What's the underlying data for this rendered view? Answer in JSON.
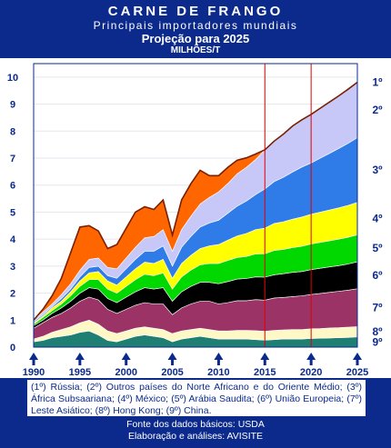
{
  "header": {
    "title": "CARNE DE FRANGO",
    "subtitle": "Principais importadores mundiais",
    "projection": "Projeção para 2025",
    "units": "MILHÕES/T"
  },
  "legend_text": "(1º) Rússia; (2º) Outros países do Norte Africano e do Oriente Médio; (3º) África Subsaariana; (4º) México; (5º) Arábia Saudita; (6º) União Europeia; (7º) Leste Asiático; (8º) Hong Kong; (9º) China.",
  "footer": {
    "source": "Fonte dos dados básicos: USDA",
    "credits": "Elaboração e análises: AVISITE"
  },
  "chart_data": {
    "type": "area",
    "stacked": true,
    "x": [
      1990,
      1991,
      1992,
      1993,
      1994,
      1995,
      1996,
      1997,
      1998,
      1999,
      2000,
      2001,
      2002,
      2003,
      2004,
      2005,
      2006,
      2007,
      2008,
      2009,
      2010,
      2011,
      2012,
      2013,
      2014,
      2015,
      2016,
      2017,
      2018,
      2019,
      2020,
      2021,
      2022,
      2023,
      2024,
      2025
    ],
    "xlim": [
      1990,
      2025
    ],
    "ylim": [
      0,
      10.5
    ],
    "x_ticks": [
      1990,
      1995,
      2000,
      2005,
      2010,
      2015,
      2020,
      2025
    ],
    "y_ticks": [
      0,
      1,
      2,
      3,
      4,
      5,
      6,
      7,
      8,
      9,
      10
    ],
    "vertical_markers": [
      2015,
      2020
    ],
    "series": [
      {
        "name": "9º",
        "color": "#1f7f73",
        "values": [
          0.2,
          0.25,
          0.35,
          0.4,
          0.45,
          0.55,
          0.6,
          0.45,
          0.25,
          0.2,
          0.3,
          0.4,
          0.45,
          0.4,
          0.35,
          0.2,
          0.3,
          0.35,
          0.4,
          0.35,
          0.3,
          0.3,
          0.3,
          0.3,
          0.28,
          0.26,
          0.28,
          0.3,
          0.3,
          0.3,
          0.32,
          0.33,
          0.34,
          0.35,
          0.36,
          0.38
        ]
      },
      {
        "name": "8º",
        "color": "#fdf8c6",
        "values": [
          0.1,
          0.15,
          0.2,
          0.25,
          0.3,
          0.35,
          0.4,
          0.4,
          0.35,
          0.3,
          0.3,
          0.3,
          0.3,
          0.3,
          0.3,
          0.3,
          0.3,
          0.3,
          0.3,
          0.3,
          0.3,
          0.3,
          0.32,
          0.32,
          0.33,
          0.33,
          0.34,
          0.34,
          0.35,
          0.35,
          0.36,
          0.36,
          0.37,
          0.37,
          0.38,
          0.38
        ]
      },
      {
        "name": "7º",
        "color": "#9c3366",
        "values": [
          0.4,
          0.5,
          0.55,
          0.6,
          0.7,
          0.8,
          0.85,
          0.9,
          0.8,
          0.75,
          0.8,
          0.85,
          0.9,
          0.9,
          0.95,
          0.7,
          0.85,
          0.95,
          1.0,
          1.05,
          1.0,
          1.05,
          1.1,
          1.1,
          1.15,
          1.15,
          1.2,
          1.2,
          1.22,
          1.25,
          1.27,
          1.3,
          1.32,
          1.35,
          1.37,
          1.4
        ]
      },
      {
        "name": "6º",
        "color": "#000000",
        "values": [
          0.1,
          0.1,
          0.15,
          0.2,
          0.25,
          0.3,
          0.35,
          0.4,
          0.4,
          0.4,
          0.45,
          0.5,
          0.55,
          0.55,
          0.6,
          0.5,
          0.6,
          0.65,
          0.7,
          0.7,
          0.75,
          0.78,
          0.8,
          0.82,
          0.84,
          0.85,
          0.86,
          0.88,
          0.9,
          0.9,
          0.92,
          0.93,
          0.94,
          0.95,
          0.97,
          1.0
        ]
      },
      {
        "name": "5º",
        "color": "#00d800",
        "values": [
          0.05,
          0.1,
          0.1,
          0.15,
          0.2,
          0.25,
          0.3,
          0.35,
          0.35,
          0.35,
          0.4,
          0.45,
          0.5,
          0.5,
          0.55,
          0.45,
          0.55,
          0.6,
          0.65,
          0.7,
          0.75,
          0.78,
          0.8,
          0.82,
          0.85,
          0.87,
          0.9,
          0.9,
          0.92,
          0.94,
          0.95,
          0.96,
          0.97,
          0.98,
          0.99,
          1.0
        ]
      },
      {
        "name": "4º",
        "color": "#ffff00",
        "values": [
          0.05,
          0.05,
          0.1,
          0.1,
          0.15,
          0.2,
          0.25,
          0.3,
          0.3,
          0.3,
          0.35,
          0.4,
          0.45,
          0.45,
          0.5,
          0.4,
          0.5,
          0.55,
          0.6,
          0.65,
          0.7,
          0.75,
          0.8,
          0.85,
          0.9,
          0.95,
          1.0,
          1.02,
          1.05,
          1.08,
          1.1,
          1.12,
          1.14,
          1.16,
          1.18,
          1.2
        ]
      },
      {
        "name": "3º",
        "color": "#2f7be8",
        "values": [
          0.05,
          0.05,
          0.05,
          0.1,
          0.1,
          0.15,
          0.2,
          0.2,
          0.2,
          0.25,
          0.3,
          0.35,
          0.4,
          0.45,
          0.5,
          0.45,
          0.6,
          0.7,
          0.8,
          0.85,
          0.9,
          1.0,
          1.1,
          1.2,
          1.3,
          1.45,
          1.55,
          1.65,
          1.75,
          1.85,
          1.9,
          2.0,
          2.1,
          2.2,
          2.3,
          2.4
        ]
      },
      {
        "name": "2º",
        "color": "#c8c8f8",
        "values": [
          0.05,
          0.1,
          0.1,
          0.15,
          0.2,
          0.25,
          0.3,
          0.3,
          0.3,
          0.35,
          0.4,
          0.45,
          0.5,
          0.55,
          0.6,
          0.55,
          0.65,
          0.75,
          0.85,
          0.95,
          1.05,
          1.1,
          1.2,
          1.25,
          1.3,
          1.45,
          1.5,
          1.6,
          1.7,
          1.75,
          1.8,
          1.85,
          1.9,
          1.95,
          2.0,
          2.05
        ]
      },
      {
        "name": "1º",
        "color": "#ff6600",
        "values": [
          0.0,
          0.1,
          0.3,
          0.6,
          1.15,
          1.6,
          1.25,
          1.0,
          0.7,
          0.9,
          1.1,
          1.3,
          1.15,
          1.0,
          1.1,
          0.6,
          1.1,
          1.2,
          1.25,
          0.8,
          0.6,
          0.6,
          0.5,
          0.35,
          0.2,
          0.0,
          0.0,
          0.0,
          0.0,
          0.0,
          0.0,
          0.0,
          0.0,
          0.0,
          0.0,
          0.0
        ]
      }
    ]
  }
}
